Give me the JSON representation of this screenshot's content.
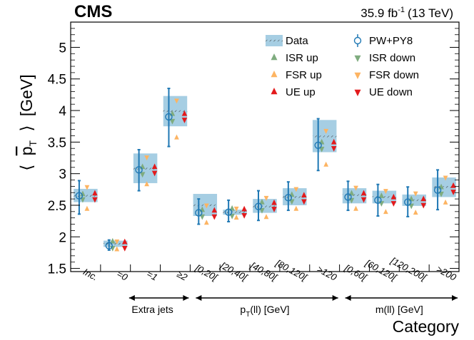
{
  "chart_data": {
    "type": "scatter",
    "experiment": "CMS",
    "lumi": "35.9 fb",
    "lumi_exp": "-1",
    "lumi_energy": "(13 TeV)",
    "ylabel": {
      "open": "⟨",
      "p": "p",
      "sub": "T",
      "close": "⟩",
      "unit": "[GeV]"
    },
    "xlabel": "Category",
    "ylim": [
      1.45,
      5.4
    ],
    "yticks": [
      1.5,
      2,
      2.5,
      3,
      3.5,
      4,
      4.5,
      5
    ],
    "yticklabels": [
      "1.5",
      "2",
      "2.5",
      "3",
      "3.5",
      "4",
      "4.5",
      "5"
    ],
    "categories": [
      "Inc.",
      "=0",
      "=1",
      "≥2",
      "[0,20[",
      "[20,40[",
      "[40,80[",
      "[80,120[",
      ">120",
      "[0,60[",
      "[60,120[",
      "[120,200[",
      ">200"
    ],
    "groups": [
      {
        "label": "Extra jets",
        "from": 1,
        "to": 3
      },
      {
        "label": "p",
        "sub": "T",
        "tail": "(ll) [GeV]",
        "from": 4,
        "to": 8
      },
      {
        "label": "m(ll) [GeV]",
        "from": 9,
        "to": 12
      }
    ],
    "legend": [
      {
        "key": "data",
        "label": "Data"
      },
      {
        "key": "pwpy8",
        "label": "PW+PY8"
      },
      {
        "key": "isr_up",
        "label": "ISR up"
      },
      {
        "key": "isr_down",
        "label": "ISR down"
      },
      {
        "key": "fsr_up",
        "label": "FSR up"
      },
      {
        "key": "fsr_down",
        "label": "FSR down"
      },
      {
        "key": "ue_up",
        "label": "UE up"
      },
      {
        "key": "ue_down",
        "label": "UE down"
      }
    ],
    "colors": {
      "data_band": "#a6cee3",
      "pwpy8": "#1f78b4",
      "isr": "#7fac7f",
      "fsr": "#fdb462",
      "ue": "#e31a1c"
    },
    "series": {
      "data": {
        "values": [
          2.65,
          1.89,
          3.08,
          3.99,
          2.5,
          2.39,
          2.48,
          2.63,
          3.59,
          2.66,
          2.63,
          2.58,
          2.79
        ],
        "band_low": [
          2.55,
          1.84,
          2.85,
          3.75,
          2.33,
          2.35,
          2.38,
          2.5,
          3.34,
          2.53,
          2.53,
          2.49,
          2.63
        ],
        "band_high": [
          2.76,
          1.94,
          3.32,
          4.23,
          2.68,
          2.43,
          2.6,
          2.77,
          3.85,
          2.77,
          2.73,
          2.67,
          2.94
        ]
      },
      "pwpy8": {
        "values": [
          2.65,
          1.86,
          3.06,
          3.9,
          2.38,
          2.39,
          2.48,
          2.62,
          3.45,
          2.63,
          2.58,
          2.55,
          2.74
        ],
        "err_low": [
          2.36,
          1.79,
          2.73,
          3.43,
          2.2,
          2.24,
          2.26,
          2.42,
          3.05,
          2.42,
          2.33,
          2.32,
          2.43
        ],
        "err_high": [
          2.89,
          1.95,
          3.38,
          4.35,
          2.6,
          2.58,
          2.73,
          2.87,
          3.87,
          2.88,
          2.83,
          2.79,
          3.06
        ]
      },
      "isr_up": [
        2.63,
        1.88,
        3.06,
        3.9,
        2.38,
        2.4,
        2.5,
        2.62,
        3.45,
        2.64,
        2.6,
        2.55,
        2.74
      ],
      "isr_down": [
        2.64,
        1.87,
        3.04,
        3.88,
        2.37,
        2.38,
        2.47,
        2.61,
        3.44,
        2.63,
        2.58,
        2.54,
        2.73
      ],
      "fsr_up": [
        2.44,
        1.8,
        2.83,
        3.57,
        2.22,
        2.3,
        2.31,
        2.44,
        3.14,
        2.44,
        2.39,
        2.38,
        2.54
      ],
      "fsr_down": [
        2.79,
        1.93,
        3.26,
        4.16,
        2.5,
        2.45,
        2.62,
        2.76,
        3.68,
        2.78,
        2.73,
        2.69,
        2.94
      ],
      "ue_up": [
        2.64,
        1.87,
        3.06,
        3.9,
        2.37,
        2.39,
        2.49,
        2.61,
        3.45,
        2.64,
        2.58,
        2.55,
        2.76
      ],
      "ue_down": [
        2.64,
        1.87,
        3.06,
        3.9,
        2.37,
        2.39,
        2.49,
        2.61,
        3.45,
        2.64,
        2.58,
        2.55,
        2.76
      ]
    }
  }
}
